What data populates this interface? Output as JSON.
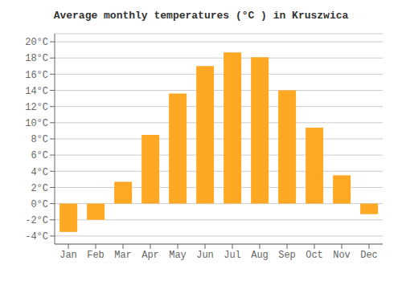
{
  "chart_data": {
    "type": "bar",
    "title": "Average monthly temperatures (°C ) in Kruszwica",
    "categories": [
      "Jan",
      "Feb",
      "Mar",
      "Apr",
      "May",
      "Jun",
      "Jul",
      "Aug",
      "Sep",
      "Oct",
      "Nov",
      "Dec"
    ],
    "values": [
      -3.5,
      -2.0,
      2.7,
      8.5,
      13.6,
      17.0,
      18.7,
      18.1,
      14.0,
      9.4,
      3.5,
      -1.3
    ],
    "color": "#FFA824",
    "ylim": [
      -5,
      21
    ],
    "yticks": [
      {
        "value": -4,
        "label": "-4°C"
      },
      {
        "value": -2,
        "label": "-2°C"
      },
      {
        "value": 0,
        "label": "0°C"
      },
      {
        "value": 2,
        "label": "2°C"
      },
      {
        "value": 4,
        "label": "4°C"
      },
      {
        "value": 6,
        "label": "6°C"
      },
      {
        "value": 8,
        "label": "8°C"
      },
      {
        "value": 10,
        "label": "10°C"
      },
      {
        "value": 12,
        "label": "12°C"
      },
      {
        "value": 14,
        "label": "14°C"
      },
      {
        "value": 16,
        "label": "16°C"
      },
      {
        "value": 18,
        "label": "18°C"
      },
      {
        "value": 20,
        "label": "20°C"
      }
    ],
    "grid": true
  }
}
